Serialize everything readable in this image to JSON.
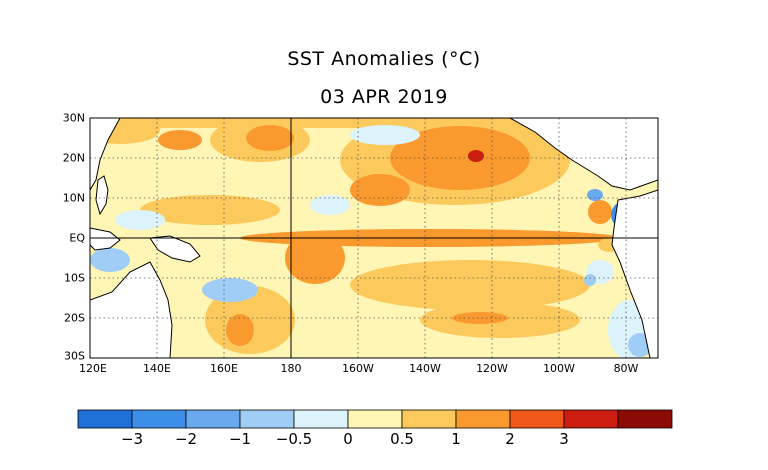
{
  "title": "SST Anomalies (°C)",
  "date": "03 APR 2019",
  "map": {
    "region": "Tropical Pacific",
    "lat_labels": [
      "30N",
      "20N",
      "10N",
      "EQ",
      "10S",
      "20S",
      "30S"
    ],
    "lon_labels": [
      "120E",
      "140E",
      "160E",
      "180",
      "160W",
      "140W",
      "120W",
      "100W",
      "80W"
    ],
    "lat_range": [
      -30,
      30
    ],
    "lon_range": [
      120,
      290
    ],
    "grid": "dotted",
    "land_color": "#ffffff",
    "coastline_color": "#000000"
  },
  "colorbar": {
    "colors": [
      "#1e6fd6",
      "#3c8ee8",
      "#69aaef",
      "#9fcdf5",
      "#dcf3fb",
      "#fff5b4",
      "#fcc95c",
      "#fa9a2e",
      "#f1581a",
      "#cc1d10",
      "#8c0b04"
    ],
    "labels": [
      "−3",
      "−2",
      "−1",
      "−0.5",
      "0",
      "0.5",
      "1",
      "2",
      "3"
    ]
  }
}
